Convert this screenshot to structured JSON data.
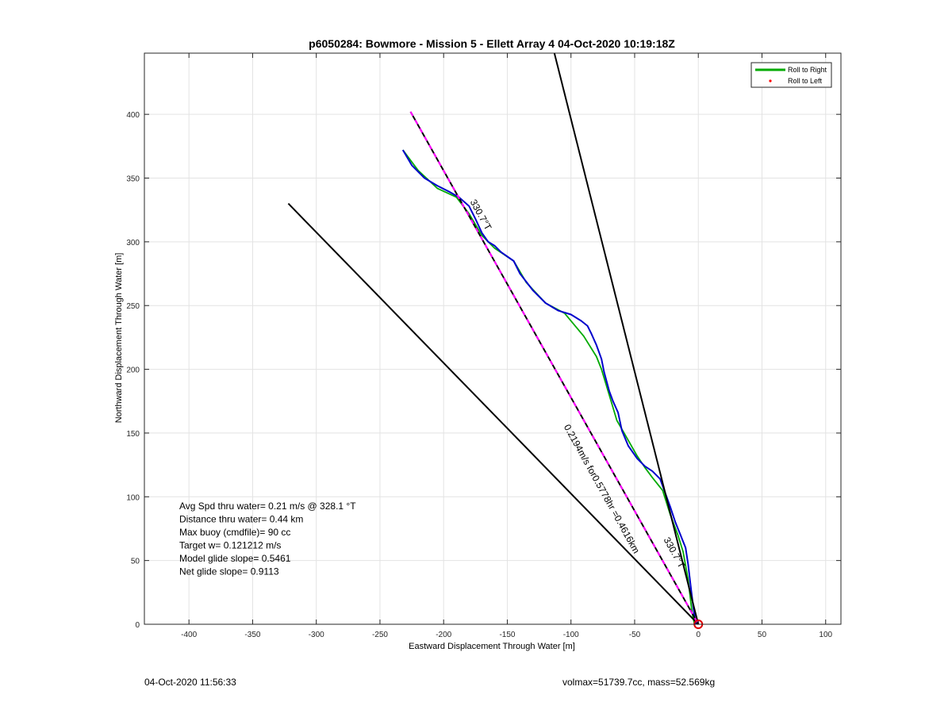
{
  "chart_data": {
    "type": "line",
    "title": "p6050284: Bowmore - Mission 5 - Ellett Array 4 04-Oct-2020 10:19:18Z",
    "xlabel": "Eastward Displacement Through Water [m]",
    "ylabel": "Northward Displacement Through Water [m]",
    "xlim": [
      -435,
      112
    ],
    "ylim": [
      0,
      448
    ],
    "xticks": [
      -400,
      -350,
      -300,
      -250,
      -200,
      -150,
      -100,
      -50,
      0,
      50,
      100
    ],
    "yticks": [
      0,
      50,
      100,
      150,
      200,
      250,
      300,
      350,
      400
    ],
    "grid": true,
    "legend_position": "top-right",
    "legend": [
      {
        "label": "Roll to Right",
        "color": "#00aa00",
        "style": "line"
      },
      {
        "label": "Roll to Left",
        "color": "#ff0000",
        "style": "dot"
      }
    ],
    "series": [
      {
        "name": "Roll to Right",
        "color": "#00aa00",
        "x": [
          -232,
          -220,
          -205,
          -190,
          -180,
          -170,
          -160,
          -145,
          -135,
          -120,
          -105,
          -90,
          -80,
          -76,
          -70,
          -64,
          -60,
          -48,
          -42,
          -36,
          -28,
          -22,
          -16,
          -12,
          -8,
          -5,
          -3
        ],
        "y": [
          372,
          356,
          342,
          335,
          322,
          305,
          295,
          285,
          268,
          252,
          244,
          226,
          210,
          200,
          180,
          160,
          153,
          132,
          123,
          115,
          105,
          86,
          70,
          57,
          35,
          10,
          0
        ]
      },
      {
        "color": "#0000cc",
        "x": [
          -232,
          -225,
          -215,
          -205,
          -195,
          -188,
          -180,
          -175,
          -170,
          -165,
          -160,
          -155,
          -145,
          -140,
          -130,
          -120,
          -110,
          -100,
          -92,
          -87,
          -84,
          -80,
          -76,
          -74,
          -70,
          -67,
          -63,
          -60,
          -55,
          -48,
          -42,
          -36,
          -30,
          -26,
          -22,
          -18,
          -14,
          -10,
          -8,
          -6,
          -4,
          -2
        ],
        "y": [
          372,
          360,
          350,
          344,
          339,
          335,
          328,
          318,
          307,
          300,
          297,
          292,
          285,
          275,
          262,
          252,
          246,
          243,
          238,
          234,
          228,
          219,
          208,
          198,
          183,
          175,
          166,
          152,
          140,
          130,
          124,
          120,
          114,
          103,
          92,
          80,
          70,
          60,
          47,
          30,
          14,
          0
        ]
      },
      {
        "color": "#000000",
        "x": [
          -322,
          0
        ],
        "y": [
          330,
          0
        ]
      },
      {
        "color": "#000000",
        "x": [
          -113,
          0
        ],
        "y": [
          448,
          0
        ]
      },
      {
        "color": "#000000",
        "x": [
          -226,
          0
        ],
        "y": [
          402,
          0
        ]
      },
      {
        "color": "#ff00ff",
        "x": [
          -226,
          0
        ],
        "y": [
          402,
          0
        ]
      }
    ],
    "markers": [
      {
        "label": "origin",
        "x": 0,
        "y": 0,
        "color": "#dd0000"
      }
    ],
    "annotations": [
      {
        "text": "330.7°T",
        "x": -173,
        "y": 320,
        "rotate": 61
      },
      {
        "text": "0.2194m/s for0.5778hr =0.4616km",
        "x": -78,
        "y": 105,
        "rotate": 61
      },
      {
        "text": "330.7°T",
        "x": -21,
        "y": 55,
        "rotate": 61
      }
    ],
    "stats": [
      "Avg Spd thru water=  0.21 m/s @ 328.1 °T",
      "Distance thru water=  0.44 km",
      "Max buoy (cmdfile)= 90 cc",
      "Target w= 0.121212 m/s",
      "Model glide slope= 0.5461",
      "Net glide slope= 0.9113"
    ]
  },
  "footer": {
    "timestamp": "04-Oct-2020 11:56:33",
    "specs": "volmax=51739.7cc, mass=52.569kg"
  }
}
